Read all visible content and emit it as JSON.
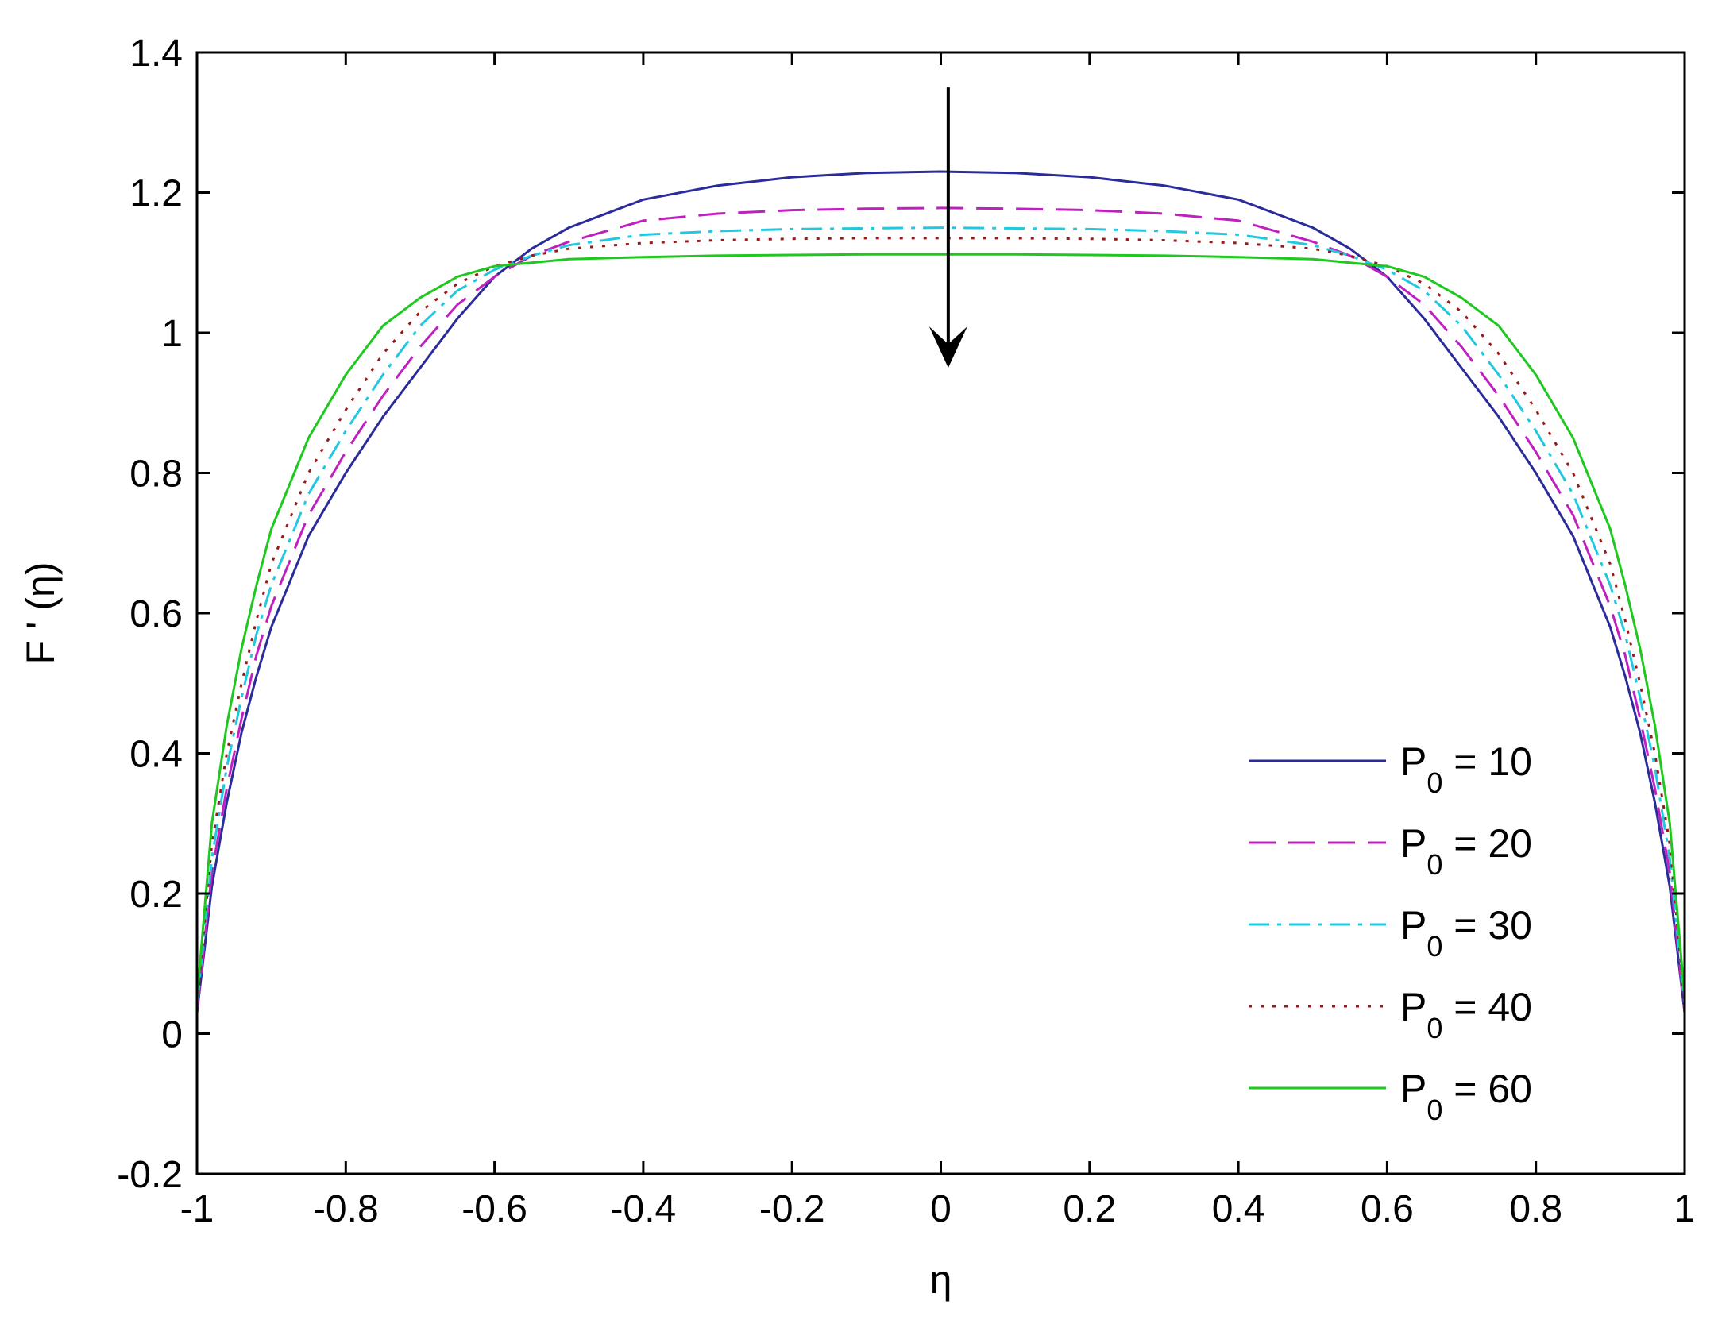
{
  "chart_data": {
    "type": "line",
    "title": "",
    "xlabel": "η",
    "ylabel": "F ' (η)",
    "xlim": [
      -1,
      1
    ],
    "ylim": [
      -0.2,
      1.4
    ],
    "xticks": [
      -1,
      -0.8,
      -0.6,
      -0.4,
      -0.2,
      0,
      0.2,
      0.4,
      0.6,
      0.8,
      1
    ],
    "xtick_labels": [
      "-1",
      "-0.8",
      "-0.6",
      "-0.4",
      "-0.2",
      "0",
      "0.2",
      "0.4",
      "0.6",
      "0.8",
      "1"
    ],
    "yticks": [
      -0.2,
      0,
      0.2,
      0.4,
      0.6,
      0.8,
      1,
      1.2,
      1.4
    ],
    "ytick_labels": [
      "-0.2",
      "0",
      "0.2",
      "0.4",
      "0.6",
      "0.8",
      "1",
      "1.2",
      "1.4"
    ],
    "grid": false,
    "legend_position": "bottom-right",
    "x": [
      -1,
      -0.98,
      -0.96,
      -0.94,
      -0.92,
      -0.9,
      -0.85,
      -0.8,
      -0.75,
      -0.7,
      -0.65,
      -0.6,
      -0.55,
      -0.5,
      -0.4,
      -0.3,
      -0.2,
      -0.1,
      0,
      0.1,
      0.2,
      0.3,
      0.4,
      0.5,
      0.55,
      0.6,
      0.65,
      0.7,
      0.75,
      0.8,
      0.85,
      0.9,
      0.92,
      0.94,
      0.96,
      0.98,
      1
    ],
    "series": [
      {
        "name": "P0 = 10",
        "legend_main": "P",
        "legend_sub": "0",
        "legend_rest": " = 10",
        "color": "#2b2b9a",
        "dash": "solid",
        "values": [
          0.03,
          0.21,
          0.33,
          0.43,
          0.51,
          0.58,
          0.71,
          0.8,
          0.88,
          0.95,
          1.02,
          1.08,
          1.12,
          1.15,
          1.19,
          1.21,
          1.222,
          1.228,
          1.23,
          1.228,
          1.222,
          1.21,
          1.19,
          1.15,
          1.12,
          1.08,
          1.02,
          0.95,
          0.88,
          0.8,
          0.71,
          0.58,
          0.51,
          0.43,
          0.33,
          0.21,
          0.03
        ]
      },
      {
        "name": "P0 = 20",
        "legend_main": "P",
        "legend_sub": "0",
        "legend_rest": " = 20",
        "color": "#bf20bf",
        "dash": "dashed",
        "values": [
          0.03,
          0.23,
          0.35,
          0.45,
          0.54,
          0.61,
          0.74,
          0.83,
          0.91,
          0.98,
          1.04,
          1.08,
          1.11,
          1.13,
          1.16,
          1.17,
          1.175,
          1.177,
          1.178,
          1.177,
          1.175,
          1.17,
          1.16,
          1.13,
          1.11,
          1.08,
          1.04,
          0.98,
          0.91,
          0.83,
          0.74,
          0.61,
          0.54,
          0.45,
          0.35,
          0.23,
          0.03
        ]
      },
      {
        "name": "P0 = 30",
        "legend_main": "P",
        "legend_sub": "0",
        "legend_rest": " = 30",
        "color": "#20c8e0",
        "dash": "dashdot",
        "values": [
          0.04,
          0.25,
          0.38,
          0.48,
          0.57,
          0.64,
          0.77,
          0.86,
          0.94,
          1.01,
          1.06,
          1.09,
          1.11,
          1.125,
          1.14,
          1.145,
          1.148,
          1.149,
          1.15,
          1.149,
          1.148,
          1.145,
          1.14,
          1.125,
          1.11,
          1.09,
          1.06,
          1.01,
          0.94,
          0.86,
          0.77,
          0.64,
          0.57,
          0.48,
          0.38,
          0.25,
          0.04
        ]
      },
      {
        "name": "P0 = 40",
        "legend_main": "P",
        "legend_sub": "0",
        "legend_rest": " = 40",
        "color": "#9a1a1a",
        "dash": "dotted",
        "values": [
          0.04,
          0.27,
          0.4,
          0.5,
          0.59,
          0.67,
          0.8,
          0.89,
          0.97,
          1.03,
          1.07,
          1.095,
          1.11,
          1.12,
          1.128,
          1.132,
          1.134,
          1.135,
          1.135,
          1.135,
          1.134,
          1.132,
          1.128,
          1.12,
          1.11,
          1.095,
          1.07,
          1.03,
          0.97,
          0.89,
          0.8,
          0.67,
          0.59,
          0.5,
          0.4,
          0.27,
          0.04
        ]
      },
      {
        "name": "P0 = 60",
        "legend_main": "P",
        "legend_sub": "0",
        "legend_rest": " = 60",
        "color": "#1ec81e",
        "dash": "solid",
        "values": [
          0.05,
          0.3,
          0.44,
          0.55,
          0.64,
          0.72,
          0.85,
          0.94,
          1.01,
          1.05,
          1.08,
          1.095,
          1.1,
          1.105,
          1.108,
          1.11,
          1.111,
          1.112,
          1.112,
          1.112,
          1.111,
          1.11,
          1.108,
          1.105,
          1.1,
          1.095,
          1.08,
          1.05,
          1.01,
          0.94,
          0.85,
          0.72,
          0.64,
          0.55,
          0.44,
          0.3,
          0.05
        ]
      }
    ],
    "annotations": [
      {
        "type": "arrow",
        "x": 0.01,
        "y_start": 1.35,
        "y_end": 0.95,
        "direction": "down"
      }
    ]
  }
}
